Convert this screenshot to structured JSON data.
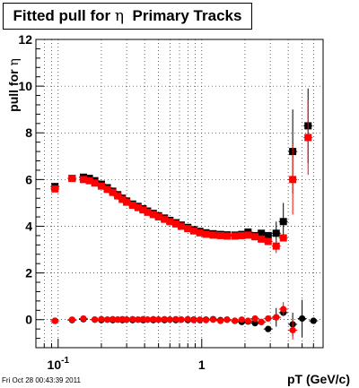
{
  "footer": {
    "timestamp": "Fri Oct 28 00:43:39 2011"
  },
  "chart_data": {
    "type": "scatter",
    "title_text": "Fitted pull for",
    "title_symbol": "η",
    "title_suffix": "Primary Tracks",
    "xlabel": "pT (GeV/c)",
    "ylabel_text": "pull for",
    "ylabel_symbol": "η",
    "x_scale": "log",
    "xlim": [
      0.07,
      7.0
    ],
    "ylim": [
      -1.2,
      12
    ],
    "grid": true,
    "x_tick_labels": [
      {
        "value": 0.1,
        "base": "10",
        "exp": "-1"
      },
      {
        "value": 1,
        "base": "1",
        "exp": ""
      }
    ],
    "y_ticks": [
      0,
      2,
      4,
      6,
      8,
      10,
      12
    ],
    "series": [
      {
        "color": "#000000",
        "marker": "square",
        "points": [
          [
            0.095,
            5.7
          ],
          [
            0.125,
            6.05
          ],
          [
            0.15,
            6.1
          ],
          [
            0.165,
            6.05
          ],
          [
            0.18,
            5.95
          ],
          [
            0.2,
            5.8
          ],
          [
            0.22,
            5.65
          ],
          [
            0.24,
            5.5
          ],
          [
            0.26,
            5.35
          ],
          [
            0.28,
            5.2
          ],
          [
            0.3,
            5.08
          ],
          [
            0.33,
            4.95
          ],
          [
            0.36,
            4.85
          ],
          [
            0.39,
            4.75
          ],
          [
            0.42,
            4.65
          ],
          [
            0.46,
            4.55
          ],
          [
            0.5,
            4.45
          ],
          [
            0.55,
            4.35
          ],
          [
            0.6,
            4.25
          ],
          [
            0.66,
            4.15
          ],
          [
            0.72,
            4.05
          ],
          [
            0.8,
            3.95
          ],
          [
            0.88,
            3.85
          ],
          [
            0.97,
            3.78
          ],
          [
            1.07,
            3.72
          ],
          [
            1.2,
            3.68
          ],
          [
            1.35,
            3.65
          ],
          [
            1.5,
            3.63
          ],
          [
            1.7,
            3.62
          ],
          [
            1.9,
            3.65
          ],
          [
            2.1,
            3.75
          ],
          [
            2.35,
            3.6
          ],
          [
            2.6,
            3.7
          ],
          [
            2.9,
            3.6
          ],
          [
            3.3,
            3.7
          ],
          [
            3.7,
            4.2
          ],
          [
            4.3,
            7.2
          ],
          [
            5.5,
            8.3
          ]
        ],
        "errors": [
          [
            0.095,
            0.1
          ],
          [
            3.3,
            0.5
          ],
          [
            3.7,
            0.8
          ],
          [
            4.3,
            1.8
          ],
          [
            5.5,
            1.6
          ]
        ]
      },
      {
        "color": "#ff0000",
        "marker": "square",
        "points": [
          [
            0.095,
            5.6
          ],
          [
            0.125,
            6.05
          ],
          [
            0.15,
            6.0
          ],
          [
            0.165,
            5.95
          ],
          [
            0.18,
            5.85
          ],
          [
            0.2,
            5.72
          ],
          [
            0.22,
            5.58
          ],
          [
            0.24,
            5.45
          ],
          [
            0.26,
            5.3
          ],
          [
            0.28,
            5.15
          ],
          [
            0.3,
            5.03
          ],
          [
            0.33,
            4.9
          ],
          [
            0.36,
            4.8
          ],
          [
            0.39,
            4.7
          ],
          [
            0.42,
            4.6
          ],
          [
            0.46,
            4.5
          ],
          [
            0.5,
            4.4
          ],
          [
            0.55,
            4.3
          ],
          [
            0.6,
            4.2
          ],
          [
            0.66,
            4.1
          ],
          [
            0.72,
            4.0
          ],
          [
            0.8,
            3.9
          ],
          [
            0.88,
            3.8
          ],
          [
            0.97,
            3.72
          ],
          [
            1.07,
            3.66
          ],
          [
            1.2,
            3.62
          ],
          [
            1.35,
            3.6
          ],
          [
            1.5,
            3.58
          ],
          [
            1.7,
            3.58
          ],
          [
            1.9,
            3.6
          ],
          [
            2.1,
            3.62
          ],
          [
            2.35,
            3.55
          ],
          [
            2.6,
            3.45
          ],
          [
            2.9,
            3.35
          ],
          [
            3.3,
            3.15
          ],
          [
            3.7,
            3.5
          ],
          [
            4.3,
            6.0
          ],
          [
            5.5,
            7.8
          ]
        ],
        "errors": [
          [
            0.095,
            0.1
          ],
          [
            3.3,
            0.3
          ],
          [
            4.3,
            1.5
          ],
          [
            5.5,
            1.6
          ]
        ]
      },
      {
        "color": "#000000",
        "marker": "circle",
        "points": [
          [
            0.095,
            -0.05
          ],
          [
            0.125,
            -0.02
          ],
          [
            0.15,
            0.02
          ],
          [
            0.18,
            0.0
          ],
          [
            0.2,
            -0.02
          ],
          [
            0.22,
            0.0
          ],
          [
            0.24,
            -0.02
          ],
          [
            0.26,
            0.0
          ],
          [
            0.28,
            -0.02
          ],
          [
            0.3,
            0.0
          ],
          [
            0.33,
            -0.02
          ],
          [
            0.36,
            0.0
          ],
          [
            0.39,
            -0.02
          ],
          [
            0.42,
            0.0
          ],
          [
            0.46,
            -0.02
          ],
          [
            0.5,
            0.0
          ],
          [
            0.55,
            -0.02
          ],
          [
            0.6,
            0.0
          ],
          [
            0.66,
            -0.02
          ],
          [
            0.72,
            0.0
          ],
          [
            0.8,
            -0.02
          ],
          [
            0.88,
            0.0
          ],
          [
            0.97,
            -0.02
          ],
          [
            1.07,
            0.0
          ],
          [
            1.2,
            0.02
          ],
          [
            1.35,
            -0.02
          ],
          [
            1.5,
            0.0
          ],
          [
            1.7,
            -0.05
          ],
          [
            1.9,
            -0.1
          ],
          [
            2.1,
            -0.08
          ],
          [
            2.35,
            -0.15
          ],
          [
            2.6,
            -0.1
          ],
          [
            2.9,
            -0.4
          ],
          [
            3.3,
            0.1
          ],
          [
            3.7,
            0.3
          ],
          [
            4.3,
            -0.2
          ],
          [
            5.0,
            0.05
          ],
          [
            6.0,
            -0.05
          ]
        ],
        "errors": [
          [
            3.3,
            0.4
          ],
          [
            4.3,
            0.5
          ],
          [
            5.0,
            0.8
          ]
        ]
      },
      {
        "color": "#ff0000",
        "marker": "circle",
        "points": [
          [
            0.095,
            -0.05
          ],
          [
            0.125,
            0.0
          ],
          [
            0.15,
            0.05
          ],
          [
            0.18,
            0.0
          ],
          [
            0.2,
            0.02
          ],
          [
            0.22,
            0.0
          ],
          [
            0.24,
            0.02
          ],
          [
            0.26,
            0.0
          ],
          [
            0.28,
            0.02
          ],
          [
            0.3,
            0.0
          ],
          [
            0.33,
            0.02
          ],
          [
            0.36,
            0.0
          ],
          [
            0.39,
            0.02
          ],
          [
            0.42,
            0.0
          ],
          [
            0.46,
            0.02
          ],
          [
            0.5,
            0.0
          ],
          [
            0.55,
            0.02
          ],
          [
            0.6,
            0.0
          ],
          [
            0.66,
            0.02
          ],
          [
            0.72,
            0.0
          ],
          [
            0.8,
            0.02
          ],
          [
            0.88,
            -0.02
          ],
          [
            0.97,
            0.0
          ],
          [
            1.07,
            -0.02
          ],
          [
            1.2,
            0.0
          ],
          [
            1.35,
            -0.05
          ],
          [
            1.5,
            0.0
          ],
          [
            1.7,
            -0.05
          ],
          [
            1.9,
            0.0
          ],
          [
            2.1,
            -0.05
          ],
          [
            2.35,
            0.05
          ],
          [
            2.6,
            -0.1
          ],
          [
            2.9,
            0.05
          ],
          [
            3.3,
            0.1
          ],
          [
            3.7,
            0.45
          ],
          [
            4.3,
            -0.45
          ]
        ],
        "errors": [
          [
            3.7,
            0.3
          ],
          [
            4.3,
            0.4
          ]
        ]
      }
    ]
  }
}
